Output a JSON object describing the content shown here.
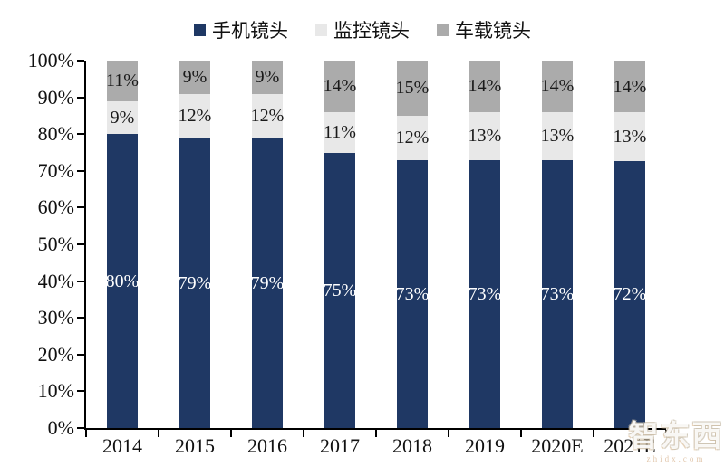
{
  "watermark": {
    "brand": "智东西",
    "site": "zhidx.com"
  },
  "chart_data": {
    "type": "bar",
    "variant": "stacked-percentage",
    "title": "",
    "xlabel": "",
    "ylabel": "",
    "categories": [
      "2014",
      "2015",
      "2016",
      "2017",
      "2018",
      "2019",
      "2020E",
      "2021E"
    ],
    "series": [
      {
        "name": "手机镜头",
        "color": "#1F3864",
        "label_color": "#FFFFFF",
        "values": [
          80,
          79,
          79,
          75,
          73,
          73,
          73,
          72
        ]
      },
      {
        "name": "监控镜头",
        "color": "#E8E8E8",
        "label_color": "#1A1A1A",
        "values": [
          9,
          12,
          12,
          11,
          12,
          13,
          13,
          13
        ]
      },
      {
        "name": "车载镜头",
        "color": "#ABABAB",
        "label_color": "#1A1A1A",
        "values": [
          11,
          9,
          9,
          14,
          15,
          14,
          14,
          14
        ]
      }
    ],
    "value_suffix": "%",
    "y_ticks": [
      "0%",
      "10%",
      "20%",
      "30%",
      "40%",
      "50%",
      "60%",
      "70%",
      "80%",
      "90%",
      "100%"
    ],
    "ylim": [
      0,
      100
    ],
    "grid": false,
    "legend_position": "top",
    "axis_color": "#000000"
  }
}
